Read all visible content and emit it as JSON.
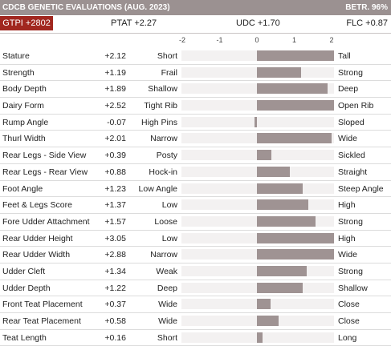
{
  "header": {
    "title": "CDCB GENETIC EVALUATIONS (AUG. 2023)",
    "betr": "BETR. 96%"
  },
  "summary": {
    "gtpi": "GTPI +2802",
    "ptat": "PTAT +2.27",
    "udc": "UDC +1.70",
    "flc": "FLC +0.87"
  },
  "scale": {
    "min": -2,
    "max": 2,
    "ticks": [
      "-2",
      "-1",
      "0",
      "1",
      "2"
    ]
  },
  "colors": {
    "header_bg": "#9b9191",
    "gtpi_bg": "#a1271f",
    "bar": "#9f9393",
    "track": "#f3f1f1"
  },
  "traits": [
    {
      "name": "Stature",
      "value": "+2.12",
      "low": "Short",
      "high": "Tall",
      "v": 2.12
    },
    {
      "name": "Strength",
      "value": "+1.19",
      "low": "Frail",
      "high": "Strong",
      "v": 1.19
    },
    {
      "name": "Body Depth",
      "value": "+1.89",
      "low": "Shallow",
      "high": "Deep",
      "v": 1.89
    },
    {
      "name": "Dairy Form",
      "value": "+2.52",
      "low": "Tight Rib",
      "high": "Open Rib",
      "v": 2.52
    },
    {
      "name": "Rump Angle",
      "value": "-0.07",
      "low": "High Pins",
      "high": "Sloped",
      "v": -0.07
    },
    {
      "name": "Thurl Width",
      "value": "+2.01",
      "low": "Narrow",
      "high": "Wide",
      "v": 2.01
    },
    {
      "name": "Rear Legs - Side View",
      "value": "+0.39",
      "low": "Posty",
      "high": "Sickled",
      "v": 0.39
    },
    {
      "name": "Rear Legs - Rear View",
      "value": "+0.88",
      "low": "Hock-in",
      "high": "Straight",
      "v": 0.88
    },
    {
      "name": "Foot Angle",
      "value": "+1.23",
      "low": "Low Angle",
      "high": "Steep Angle",
      "v": 1.23
    },
    {
      "name": "Feet & Legs Score",
      "value": "+1.37",
      "low": "Low",
      "high": "High",
      "v": 1.37
    },
    {
      "name": "Fore Udder Attachment",
      "value": "+1.57",
      "low": "Loose",
      "high": "Strong",
      "v": 1.57
    },
    {
      "name": "Rear Udder Height",
      "value": "+3.05",
      "low": "Low",
      "high": "High",
      "v": 3.05
    },
    {
      "name": "Rear Udder Width",
      "value": "+2.88",
      "low": "Narrow",
      "high": "Wide",
      "v": 2.88
    },
    {
      "name": "Udder Cleft",
      "value": "+1.34",
      "low": "Weak",
      "high": "Strong",
      "v": 1.34
    },
    {
      "name": "Udder Depth",
      "value": "+1.22",
      "low": "Deep",
      "high": "Shallow",
      "v": 1.22
    },
    {
      "name": "Front Teat Placement",
      "value": "+0.37",
      "low": "Wide",
      "high": "Close",
      "v": 0.37
    },
    {
      "name": "Rear Teat Placement",
      "value": "+0.58",
      "low": "Wide",
      "high": "Close",
      "v": 0.58
    },
    {
      "name": "Teat Length",
      "value": "+0.16",
      "low": "Short",
      "high": "Long",
      "v": 0.16
    }
  ]
}
